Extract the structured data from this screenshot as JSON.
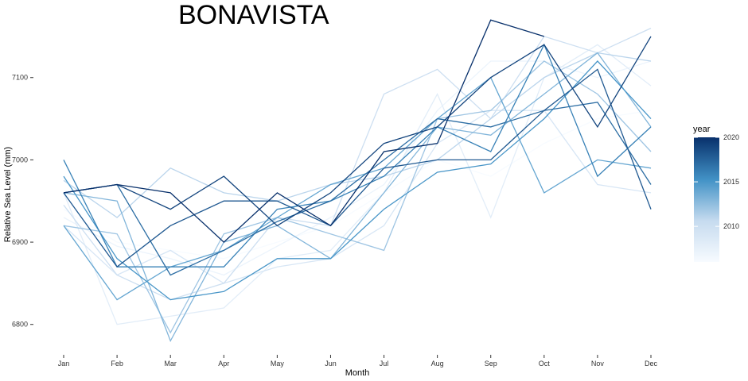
{
  "chart_data": {
    "type": "line",
    "title": "BONAVISTA",
    "xlabel": "Month",
    "ylabel": "Relative Sea Level (mm)",
    "categories": [
      "Jan",
      "Feb",
      "Mar",
      "Apr",
      "May",
      "Jun",
      "Jul",
      "Aug",
      "Sep",
      "Oct",
      "Nov",
      "Dec"
    ],
    "ylim": [
      6765,
      7175
    ],
    "yticks": [
      6800,
      6900,
      7000,
      7100
    ],
    "grid": false,
    "legend": {
      "title": "year",
      "type": "colorbar",
      "placement": "right",
      "range": [
        2006,
        2020
      ],
      "ticks": [
        2010,
        2015,
        2020
      ],
      "low_color": "#f7fbff",
      "high_color": "#08306b"
    },
    "series": [
      {
        "year": 2006,
        "values": [
          6940,
          6900,
          6890,
          6880,
          6900,
          6920,
          6960,
          7000,
          6980,
          7020,
          7050,
          7060
        ]
      },
      {
        "year": 2007,
        "values": [
          6930,
          6895,
          6880,
          6860,
          6895,
          6930,
          6970,
          7060,
          7120,
          7120,
          7100,
          7120
        ]
      },
      {
        "year": 2008,
        "values": [
          6960,
          6800,
          6810,
          6820,
          6880,
          6890,
          6960,
          7080,
          6930,
          7100,
          7140,
          7090
        ]
      },
      {
        "year": 2009,
        "values": [
          6920,
          6860,
          6890,
          6850,
          6870,
          6880,
          6920,
          7020,
          7060,
          7060,
          6970,
          6960
        ]
      },
      {
        "year": 2010,
        "values": [
          6945,
          6860,
          6830,
          6850,
          6930,
          6920,
          7080,
          7110,
          7050,
          7150,
          7130,
          7160
        ]
      },
      {
        "year": 2011,
        "values": [
          6975,
          6930,
          6990,
          6960,
          6950,
          6970,
          6980,
          7000,
          7050,
          7100,
          7130,
          7120
        ]
      },
      {
        "year": 2012,
        "values": [
          6920,
          6910,
          6790,
          6910,
          6930,
          6910,
          6890,
          7050,
          7060,
          7120,
          7080,
          7010
        ]
      },
      {
        "year": 2013,
        "values": [
          6960,
          6950,
          6780,
          6900,
          6920,
          6880,
          6960,
          7040,
          7030,
          7080,
          7130,
          7040
        ]
      },
      {
        "year": 2014,
        "values": [
          6920,
          6830,
          6870,
          6890,
          6930,
          6970,
          6990,
          7050,
          7100,
          6960,
          7000,
          6990
        ]
      },
      {
        "year": 2015,
        "values": [
          6980,
          6880,
          6830,
          6840,
          6880,
          6880,
          6940,
          6985,
          6995,
          7050,
          7120,
          7050
        ]
      },
      {
        "year": 2016,
        "values": [
          7000,
          6870,
          6870,
          6870,
          6940,
          6950,
          6980,
          7040,
          7010,
          7140,
          6980,
          7040
        ]
      },
      {
        "year": 2017,
        "values": [
          6960,
          6970,
          6860,
          6890,
          6925,
          6950,
          7000,
          7050,
          7040,
          7060,
          7070,
          6970
        ]
      },
      {
        "year": 2018,
        "values": [
          6960,
          6870,
          6920,
          6950,
          6950,
          6920,
          6990,
          7000,
          7000,
          7060,
          7110,
          6940
        ]
      },
      {
        "year": 2019,
        "values": [
          6960,
          6970,
          6940,
          6980,
          6920,
          6960,
          7020,
          7040,
          7100,
          7140,
          7040,
          7150
        ]
      },
      {
        "year": 2020,
        "values": [
          6960,
          6970,
          6960,
          6900,
          6960,
          6920,
          7010,
          7020,
          7170,
          7150,
          null,
          null
        ]
      }
    ]
  }
}
